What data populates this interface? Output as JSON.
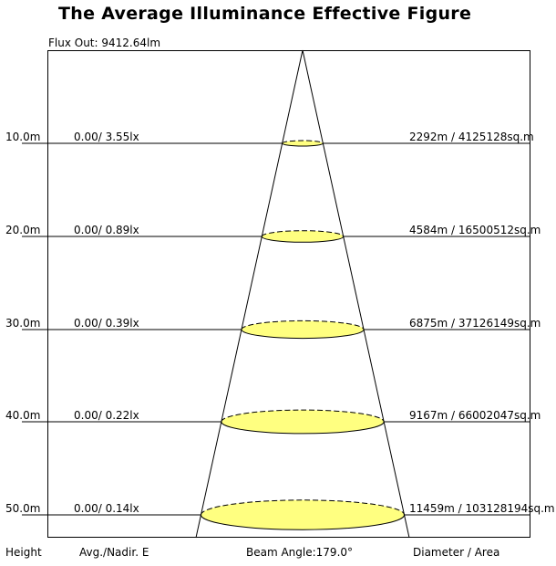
{
  "title": "The Average Illuminance Effective Figure",
  "flux_out": "Flux Out: 9412.64lm",
  "colors": {
    "spot_fill": "#ffff80",
    "line": "#000000"
  },
  "levels": [
    {
      "height": "10.0m",
      "illuminance": "0.00/ 3.55lx",
      "diameter_area": "2292m / 4125128sq.m"
    },
    {
      "height": "20.0m",
      "illuminance": "0.00/ 0.89lx",
      "diameter_area": "4584m / 16500512sq.m"
    },
    {
      "height": "30.0m",
      "illuminance": "0.00/ 0.39lx",
      "diameter_area": "6875m / 37126149sq.m"
    },
    {
      "height": "40.0m",
      "illuminance": "0.00/ 0.22lx",
      "diameter_area": "9167m / 66002047sq.m"
    },
    {
      "height": "50.0m",
      "illuminance": "0.00/ 0.14lx",
      "diameter_area": "11459m / 103128194sq.m"
    }
  ],
  "footer": {
    "height_label": "Height",
    "illuminance_label": "Avg./Nadir. E",
    "beam_angle": "Beam Angle:179.0°",
    "diameter_label": "Diameter / Area"
  }
}
